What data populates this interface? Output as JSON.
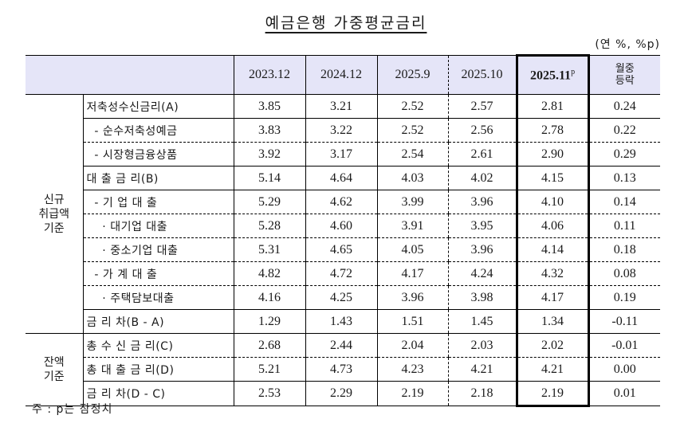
{
  "title": "예금은행 가중평균금리",
  "unit": "(연 %, %p)",
  "table": {
    "columns": [
      "2023.12",
      "2024.12",
      "2025.9",
      "2025.10",
      "2025.11",
      "월중\n등락"
    ],
    "current_col_label": "2025.11",
    "current_col_sup": "p",
    "change_col_line1": "월중",
    "change_col_line2": "등락",
    "groups": [
      {
        "label_lines": [
          "신규",
          "취급액",
          "기준"
        ],
        "rows": [
          {
            "label": "저축성수신금리(A)",
            "values": [
              "3.85",
              "3.21",
              "2.52",
              "2.57",
              "2.81",
              "0.24"
            ]
          },
          {
            "label": "  - 순수저축성예금",
            "values": [
              "3.83",
              "3.22",
              "2.52",
              "2.56",
              "2.78",
              "0.22"
            ]
          },
          {
            "label": "  - 시장형금융상품",
            "values": [
              "3.92",
              "3.17",
              "2.54",
              "2.61",
              "2.90",
              "0.29"
            ]
          },
          {
            "label": "대 출 금 리(B)",
            "values": [
              "5.14",
              "4.64",
              "4.03",
              "4.02",
              "4.15",
              "0.13"
            ]
          },
          {
            "label": "  - 기 업 대 출",
            "values": [
              "5.29",
              "4.62",
              "3.99",
              "3.96",
              "4.10",
              "0.14"
            ]
          },
          {
            "label": "    · 대기업 대출",
            "values": [
              "5.28",
              "4.60",
              "3.91",
              "3.95",
              "4.06",
              "0.11"
            ]
          },
          {
            "label": "    · 중소기업 대출",
            "values": [
              "5.31",
              "4.65",
              "4.05",
              "3.96",
              "4.14",
              "0.18"
            ]
          },
          {
            "label": "  - 가 계 대 출",
            "values": [
              "4.82",
              "4.72",
              "4.17",
              "4.24",
              "4.32",
              "0.08"
            ]
          },
          {
            "label": "    · 주택담보대출",
            "values": [
              "4.16",
              "4.25",
              "3.96",
              "3.98",
              "4.17",
              "0.19"
            ]
          },
          {
            "label": "금 리 차(B - A)",
            "values": [
              "1.29",
              "1.43",
              "1.51",
              "1.45",
              "1.34",
              "-0.11"
            ]
          }
        ]
      },
      {
        "label_lines": [
          "잔액",
          "기준"
        ],
        "rows": [
          {
            "label": "총 수 신 금 리(C)",
            "values": [
              "2.68",
              "2.44",
              "2.04",
              "2.03",
              "2.02",
              "-0.01"
            ]
          },
          {
            "label": "총 대 출 금 리(D)",
            "values": [
              "5.21",
              "4.73",
              "4.23",
              "4.21",
              "4.21",
              "0.00"
            ]
          },
          {
            "label": "금 리 차(D - C)",
            "values": [
              "2.53",
              "2.29",
              "2.19",
              "2.18",
              "2.19",
              "0.01"
            ]
          }
        ]
      }
    ]
  },
  "note": "주 : p는 잠정치",
  "colors": {
    "header_bg": "#e5e5f8",
    "border": "#000000"
  }
}
